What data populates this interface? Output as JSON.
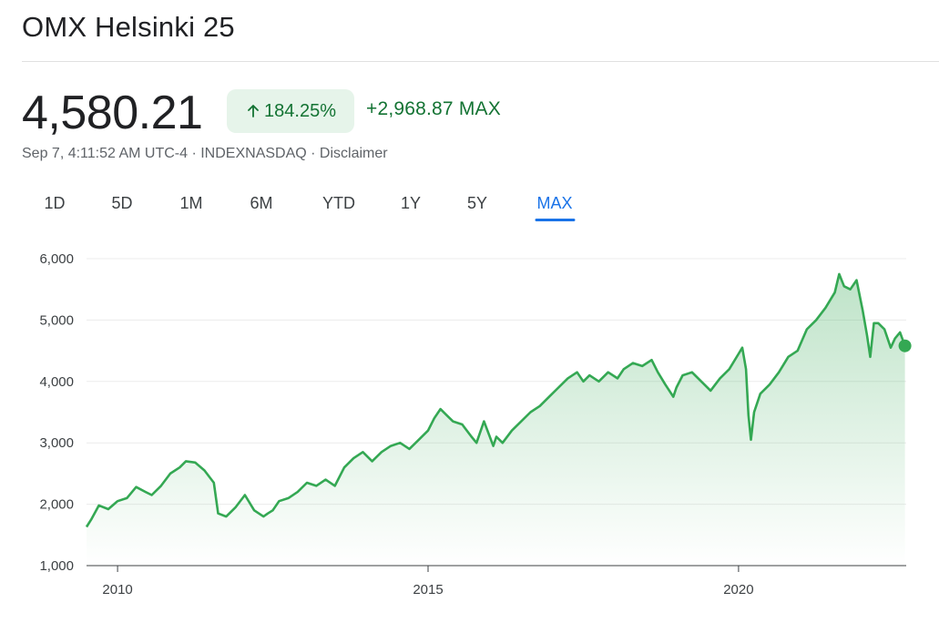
{
  "header": {
    "title": "OMX Helsinki 25"
  },
  "quote": {
    "price": "4,580.21",
    "percent_change": "184.25%",
    "change": "+2,968.87 MAX",
    "meta": {
      "timestamp": "Sep 7, 4:11:52 AM UTC-4",
      "exchange": "INDEXNASDAQ",
      "disclaimer": "Disclaimer",
      "separator": " · "
    }
  },
  "colors": {
    "positive_green": "#137333",
    "line_green": "#34a853",
    "badge_bg": "#e6f4ea",
    "active_tab": "#1a73e8"
  },
  "icons": {
    "percent_arrow": "arrow-up-icon"
  },
  "tabs": [
    {
      "label": "1D",
      "active": false
    },
    {
      "label": "5D",
      "active": false
    },
    {
      "label": "1M",
      "active": false
    },
    {
      "label": "6M",
      "active": false
    },
    {
      "label": "YTD",
      "active": false
    },
    {
      "label": "1Y",
      "active": false
    },
    {
      "label": "5Y",
      "active": false
    },
    {
      "label": "MAX",
      "active": true
    }
  ],
  "chart_data": {
    "type": "area",
    "title": "",
    "xlabel": "",
    "ylabel": "",
    "xlim": [
      2009.5,
      2022.7
    ],
    "ylim": [
      1000,
      6000
    ],
    "yticks": [
      1000,
      2000,
      3000,
      4000,
      5000,
      6000
    ],
    "ytick_labels": [
      "1,000",
      "2,000",
      "3,000",
      "4,000",
      "5,000",
      "6,000"
    ],
    "xticks": [
      2010,
      2015,
      2020
    ],
    "xtick_labels": [
      "2010",
      "2015",
      "2020"
    ],
    "grid": true,
    "legend": "none",
    "series": [
      {
        "x": [
          2009.5,
          2009.58,
          2009.7,
          2009.85,
          2010.0,
          2010.15,
          2010.3,
          2010.45,
          2010.55,
          2010.7,
          2010.85,
          2011.0,
          2011.1,
          2011.25,
          2011.4,
          2011.55,
          2011.62,
          2011.75,
          2011.9,
          2012.05,
          2012.2,
          2012.35,
          2012.42,
          2012.5,
          2012.6,
          2012.75,
          2012.9,
          2013.05,
          2013.2,
          2013.35,
          2013.5,
          2013.65,
          2013.8,
          2013.95,
          2014.1,
          2014.25,
          2014.4,
          2014.55,
          2014.7,
          2014.85,
          2015.0,
          2015.1,
          2015.2,
          2015.3,
          2015.4,
          2015.55,
          2015.7,
          2015.78,
          2015.9,
          2016.05,
          2016.1,
          2016.2,
          2016.35,
          2016.5,
          2016.65,
          2016.8,
          2016.95,
          2017.1,
          2017.25,
          2017.4,
          2017.5,
          2017.6,
          2017.75,
          2017.9,
          2018.05,
          2018.15,
          2018.3,
          2018.45,
          2018.6,
          2018.7,
          2018.82,
          2018.95,
          2019.0,
          2019.1,
          2019.25,
          2019.4,
          2019.55,
          2019.7,
          2019.85,
          2020.0,
          2020.06,
          2020.12,
          2020.16,
          2020.2,
          2020.25,
          2020.35,
          2020.5,
          2020.65,
          2020.8,
          2020.95,
          2021.1,
          2021.25,
          2021.4,
          2021.55,
          2021.62,
          2021.7,
          2021.8,
          2021.9,
          2022.0,
          2022.07,
          2022.12,
          2022.18,
          2022.25,
          2022.35,
          2022.45,
          2022.52,
          2022.6,
          2022.68
        ],
        "values": [
          1630,
          1760,
          1980,
          1920,
          2050,
          2100,
          2280,
          2200,
          2150,
          2300,
          2500,
          2600,
          2700,
          2680,
          2550,
          2350,
          1850,
          1800,
          1950,
          2150,
          1900,
          1800,
          1850,
          1900,
          2050,
          2100,
          2200,
          2350,
          2300,
          2400,
          2300,
          2600,
          2750,
          2850,
          2700,
          2850,
          2950,
          3000,
          2900,
          3050,
          3200,
          3400,
          3550,
          3450,
          3350,
          3300,
          3100,
          3000,
          3350,
          2950,
          3100,
          3000,
          3200,
          3350,
          3500,
          3600,
          3750,
          3900,
          4050,
          4150,
          4000,
          4100,
          4000,
          4150,
          4050,
          4200,
          4300,
          4250,
          4350,
          4150,
          3950,
          3750,
          3900,
          4100,
          4150,
          4000,
          3850,
          4050,
          4200,
          4450,
          4550,
          4200,
          3450,
          3050,
          3500,
          3800,
          3950,
          4150,
          4400,
          4500,
          4850,
          5000,
          5200,
          5450,
          5750,
          5550,
          5500,
          5650,
          5150,
          4750,
          4400,
          4950,
          4950,
          4850,
          4550,
          4700,
          4800,
          4580
        ]
      }
    ],
    "last_value": 4580.21
  }
}
